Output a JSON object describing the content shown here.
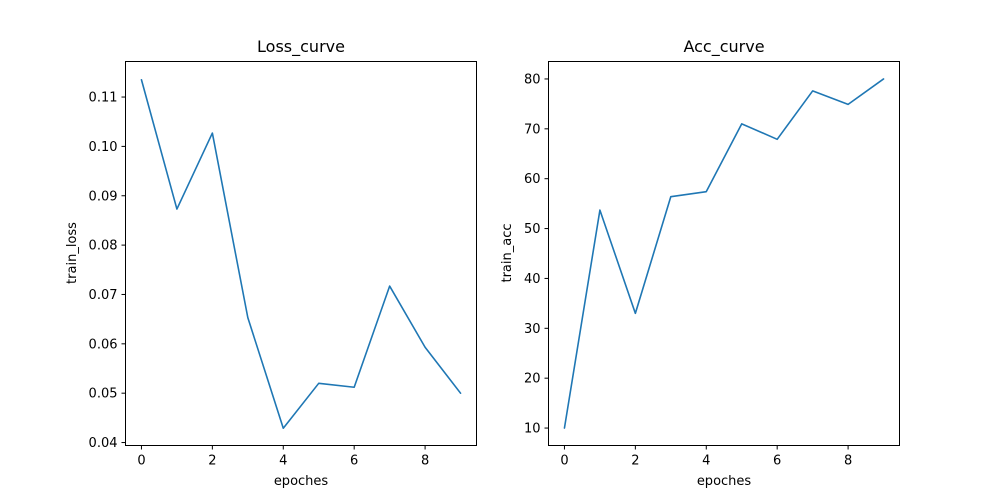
{
  "figure": {
    "background": "#ffffff"
  },
  "chart_data": [
    {
      "type": "line",
      "title": "Loss_curve",
      "xlabel": "epoches",
      "ylabel": "train_loss",
      "x": [
        0,
        1,
        2,
        3,
        4,
        5,
        6,
        7,
        8,
        9
      ],
      "series": [
        {
          "values": [
            0.1135,
            0.0873,
            0.1027,
            0.0653,
            0.0429,
            0.052,
            0.0512,
            0.0717,
            0.0593,
            0.05
          ],
          "color": "#1f77b4"
        }
      ],
      "xlim": [
        -0.45,
        9.45
      ],
      "ylim": [
        0.0394,
        0.1172
      ],
      "xticks": [
        0,
        2,
        4,
        6,
        8
      ],
      "xtick_labels": [
        "0",
        "2",
        "4",
        "6",
        "8"
      ],
      "yticks": [
        0.04,
        0.05,
        0.06,
        0.07,
        0.08,
        0.09,
        0.1,
        0.11
      ],
      "ytick_labels": [
        "0.04",
        "0.05",
        "0.06",
        "0.07",
        "0.08",
        "0.09",
        "0.10",
        "0.11"
      ],
      "grid": false,
      "legend": "none"
    },
    {
      "type": "line",
      "title": "Acc_curve",
      "xlabel": "epoches",
      "ylabel": "train_acc",
      "x": [
        0,
        1,
        2,
        3,
        4,
        5,
        6,
        7,
        8,
        9
      ],
      "series": [
        {
          "values": [
            10.0,
            53.7,
            33.0,
            56.4,
            57.4,
            71.0,
            67.9,
            77.6,
            74.9,
            80.0
          ],
          "color": "#1f77b4"
        }
      ],
      "xlim": [
        -0.45,
        9.45
      ],
      "ylim": [
        6.5,
        83.5
      ],
      "xticks": [
        0,
        2,
        4,
        6,
        8
      ],
      "xtick_labels": [
        "0",
        "2",
        "4",
        "6",
        "8"
      ],
      "yticks": [
        10,
        20,
        30,
        40,
        50,
        60,
        70,
        80
      ],
      "ytick_labels": [
        "10",
        "20",
        "30",
        "40",
        "50",
        "60",
        "70",
        "80"
      ],
      "grid": false,
      "legend": "none"
    }
  ]
}
